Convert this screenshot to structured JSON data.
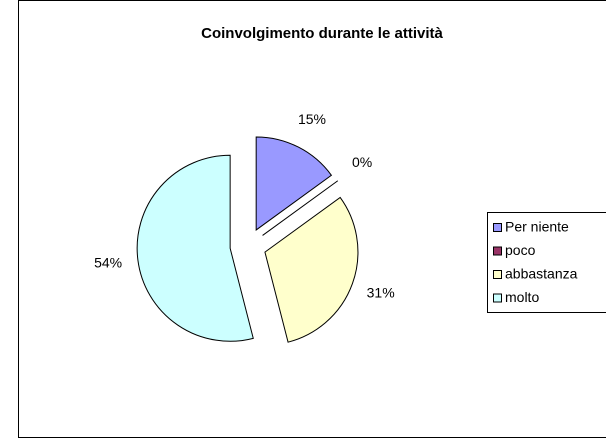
{
  "chart_data": {
    "type": "pie",
    "title": "Coinvolgimento durante le attività",
    "categories": [
      "Per niente",
      "poco",
      "abbastanza",
      "molto"
    ],
    "values": [
      15,
      0,
      31,
      54
    ],
    "value_labels": [
      "15%",
      "0%",
      "31%",
      "54%"
    ],
    "colors": [
      "#9999ff",
      "#993366",
      "#ffffcc",
      "#ccffff"
    ],
    "legend": "right"
  }
}
